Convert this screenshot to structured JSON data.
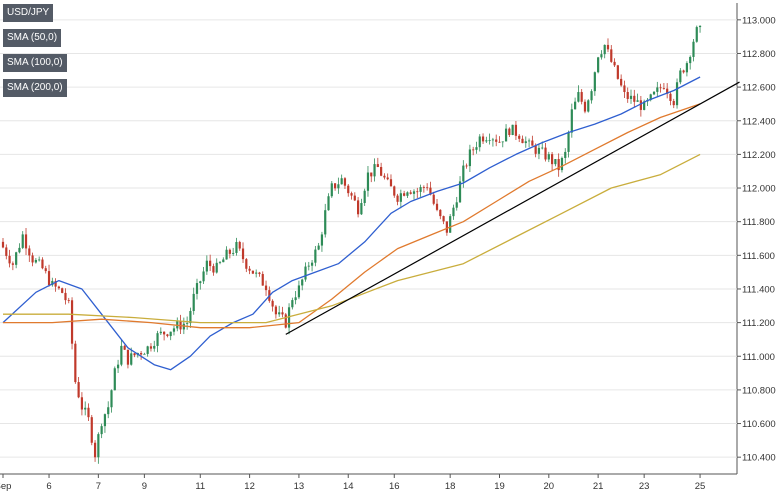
{
  "legend": {
    "symbol": "USD/JPY",
    "sma50": "SMA (50,0)",
    "sma100": "SMA (100,0)",
    "sma200": "SMA (200,0)"
  },
  "colors": {
    "bull": "#2e8b57",
    "bear": "#c0392b",
    "sma50": "#2f5fd0",
    "sma100": "#e07a2e",
    "sma200": "#c9ad3c",
    "trendline": "#000000",
    "grid": "#e6e6e6",
    "axis_text": "#333333",
    "legend_bg": "#545b66"
  },
  "chart_data": {
    "type": "candlestick",
    "title": "",
    "xlabel": "",
    "ylabel": "",
    "ylim": [
      110.3,
      113.1
    ],
    "grid": true,
    "legend_placement": "top-left",
    "y_ticks": [
      "113.000",
      "112.800",
      "112.600",
      "112.400",
      "112.200",
      "112.000",
      "111.800",
      "111.600",
      "111.400",
      "111.200",
      "111.000",
      "110.800",
      "110.600",
      "110.400"
    ],
    "x_ticks": [
      {
        "label": "Sep",
        "bar": 0
      },
      {
        "label": "6",
        "bar": 14
      },
      {
        "label": "7",
        "bar": 29
      },
      {
        "label": "9",
        "bar": 43
      },
      {
        "label": "11",
        "bar": 60
      },
      {
        "label": "12",
        "bar": 75
      },
      {
        "label": "13",
        "bar": 90
      },
      {
        "label": "14",
        "bar": 105
      },
      {
        "label": "16",
        "bar": 119
      },
      {
        "label": "18",
        "bar": 136
      },
      {
        "label": "19",
        "bar": 151
      },
      {
        "label": "20",
        "bar": 166
      },
      {
        "label": "21",
        "bar": 181
      },
      {
        "label": "23",
        "bar": 195
      },
      {
        "label": "25",
        "bar": 212
      }
    ],
    "bar_count": 213,
    "price_path": [
      [
        0,
        111.68
      ],
      [
        4,
        111.55
      ],
      [
        7,
        111.72
      ],
      [
        10,
        111.58
      ],
      [
        13,
        111.52
      ],
      [
        16,
        111.42
      ],
      [
        19,
        111.38
      ],
      [
        21,
        111.3
      ],
      [
        23,
        110.85
      ],
      [
        25,
        110.7
      ],
      [
        27,
        110.62
      ],
      [
        29,
        110.42
      ],
      [
        31,
        110.62
      ],
      [
        33,
        110.7
      ],
      [
        35,
        110.9
      ],
      [
        37,
        111.05
      ],
      [
        39,
        110.98
      ],
      [
        42,
        111.02
      ],
      [
        45,
        111.05
      ],
      [
        48,
        111.12
      ],
      [
        51,
        111.15
      ],
      [
        54,
        111.18
      ],
      [
        57,
        111.2
      ],
      [
        59,
        111.35
      ],
      [
        61,
        111.45
      ],
      [
        63,
        111.55
      ],
      [
        66,
        111.52
      ],
      [
        69,
        111.6
      ],
      [
        72,
        111.65
      ],
      [
        75,
        111.55
      ],
      [
        78,
        111.48
      ],
      [
        81,
        111.42
      ],
      [
        84,
        111.25
      ],
      [
        87,
        111.2
      ],
      [
        89,
        111.35
      ],
      [
        91,
        111.4
      ],
      [
        94,
        111.55
      ],
      [
        97,
        111.65
      ],
      [
        99,
        111.85
      ],
      [
        101,
        112.0
      ],
      [
        104,
        112.05
      ],
      [
        107,
        111.95
      ],
      [
        109,
        111.88
      ],
      [
        112,
        112.08
      ],
      [
        115,
        112.12
      ],
      [
        118,
        112.02
      ],
      [
        121,
        111.95
      ],
      [
        124,
        112.0
      ],
      [
        127,
        111.98
      ],
      [
        130,
        112.02
      ],
      [
        133,
        111.85
      ],
      [
        136,
        111.75
      ],
      [
        139,
        111.95
      ],
      [
        141,
        112.1
      ],
      [
        143,
        112.2
      ],
      [
        146,
        112.3
      ],
      [
        149,
        112.32
      ],
      [
        152,
        112.28
      ],
      [
        155,
        112.35
      ],
      [
        158,
        112.32
      ],
      [
        161,
        112.25
      ],
      [
        164,
        112.22
      ],
      [
        167,
        112.18
      ],
      [
        170,
        112.12
      ],
      [
        172,
        112.2
      ],
      [
        174,
        112.45
      ],
      [
        176,
        112.55
      ],
      [
        178,
        112.48
      ],
      [
        180,
        112.6
      ],
      [
        182,
        112.8
      ],
      [
        184,
        112.85
      ],
      [
        186,
        112.75
      ],
      [
        188,
        112.65
      ],
      [
        190,
        112.55
      ],
      [
        193,
        112.52
      ],
      [
        196,
        112.48
      ],
      [
        199,
        112.55
      ],
      [
        202,
        112.62
      ],
      [
        205,
        112.52
      ],
      [
        207,
        112.68
      ],
      [
        209,
        112.75
      ],
      [
        211,
        112.88
      ],
      [
        212,
        112.93
      ]
    ],
    "volatility": 0.045,
    "series": [
      {
        "name": "SMA (50,0)",
        "points": [
          [
            0,
            111.2
          ],
          [
            10,
            111.38
          ],
          [
            17,
            111.45
          ],
          [
            24,
            111.4
          ],
          [
            30,
            111.25
          ],
          [
            38,
            111.05
          ],
          [
            46,
            110.95
          ],
          [
            51,
            110.92
          ],
          [
            57,
            111.0
          ],
          [
            63,
            111.12
          ],
          [
            70,
            111.2
          ],
          [
            76,
            111.25
          ],
          [
            82,
            111.38
          ],
          [
            88,
            111.45
          ],
          [
            95,
            111.5
          ],
          [
            102,
            111.55
          ],
          [
            110,
            111.68
          ],
          [
            118,
            111.85
          ],
          [
            124,
            111.92
          ],
          [
            132,
            111.98
          ],
          [
            140,
            112.03
          ],
          [
            148,
            112.12
          ],
          [
            156,
            112.2
          ],
          [
            164,
            112.27
          ],
          [
            172,
            112.33
          ],
          [
            180,
            112.38
          ],
          [
            188,
            112.44
          ],
          [
            196,
            112.52
          ],
          [
            204,
            112.58
          ],
          [
            212,
            112.66
          ]
        ]
      },
      {
        "name": "SMA (100,0)",
        "points": [
          [
            0,
            111.2
          ],
          [
            15,
            111.2
          ],
          [
            30,
            111.22
          ],
          [
            45,
            111.2
          ],
          [
            60,
            111.17
          ],
          [
            75,
            111.17
          ],
          [
            90,
            111.2
          ],
          [
            100,
            111.34
          ],
          [
            110,
            111.5
          ],
          [
            120,
            111.64
          ],
          [
            130,
            111.72
          ],
          [
            140,
            111.8
          ],
          [
            150,
            111.92
          ],
          [
            160,
            112.04
          ],
          [
            170,
            112.13
          ],
          [
            180,
            112.23
          ],
          [
            190,
            112.33
          ],
          [
            200,
            112.42
          ],
          [
            212,
            112.5
          ]
        ]
      },
      {
        "name": "SMA (200,0)",
        "points": [
          [
            0,
            111.25
          ],
          [
            20,
            111.25
          ],
          [
            40,
            111.23
          ],
          [
            60,
            111.2
          ],
          [
            80,
            111.2
          ],
          [
            100,
            111.3
          ],
          [
            120,
            111.45
          ],
          [
            140,
            111.55
          ],
          [
            155,
            111.7
          ],
          [
            170,
            111.85
          ],
          [
            185,
            112.0
          ],
          [
            200,
            112.08
          ],
          [
            212,
            112.2
          ]
        ]
      }
    ],
    "trendline": {
      "start": [
        86,
        111.13
      ],
      "end": [
        224,
        112.63
      ]
    }
  }
}
